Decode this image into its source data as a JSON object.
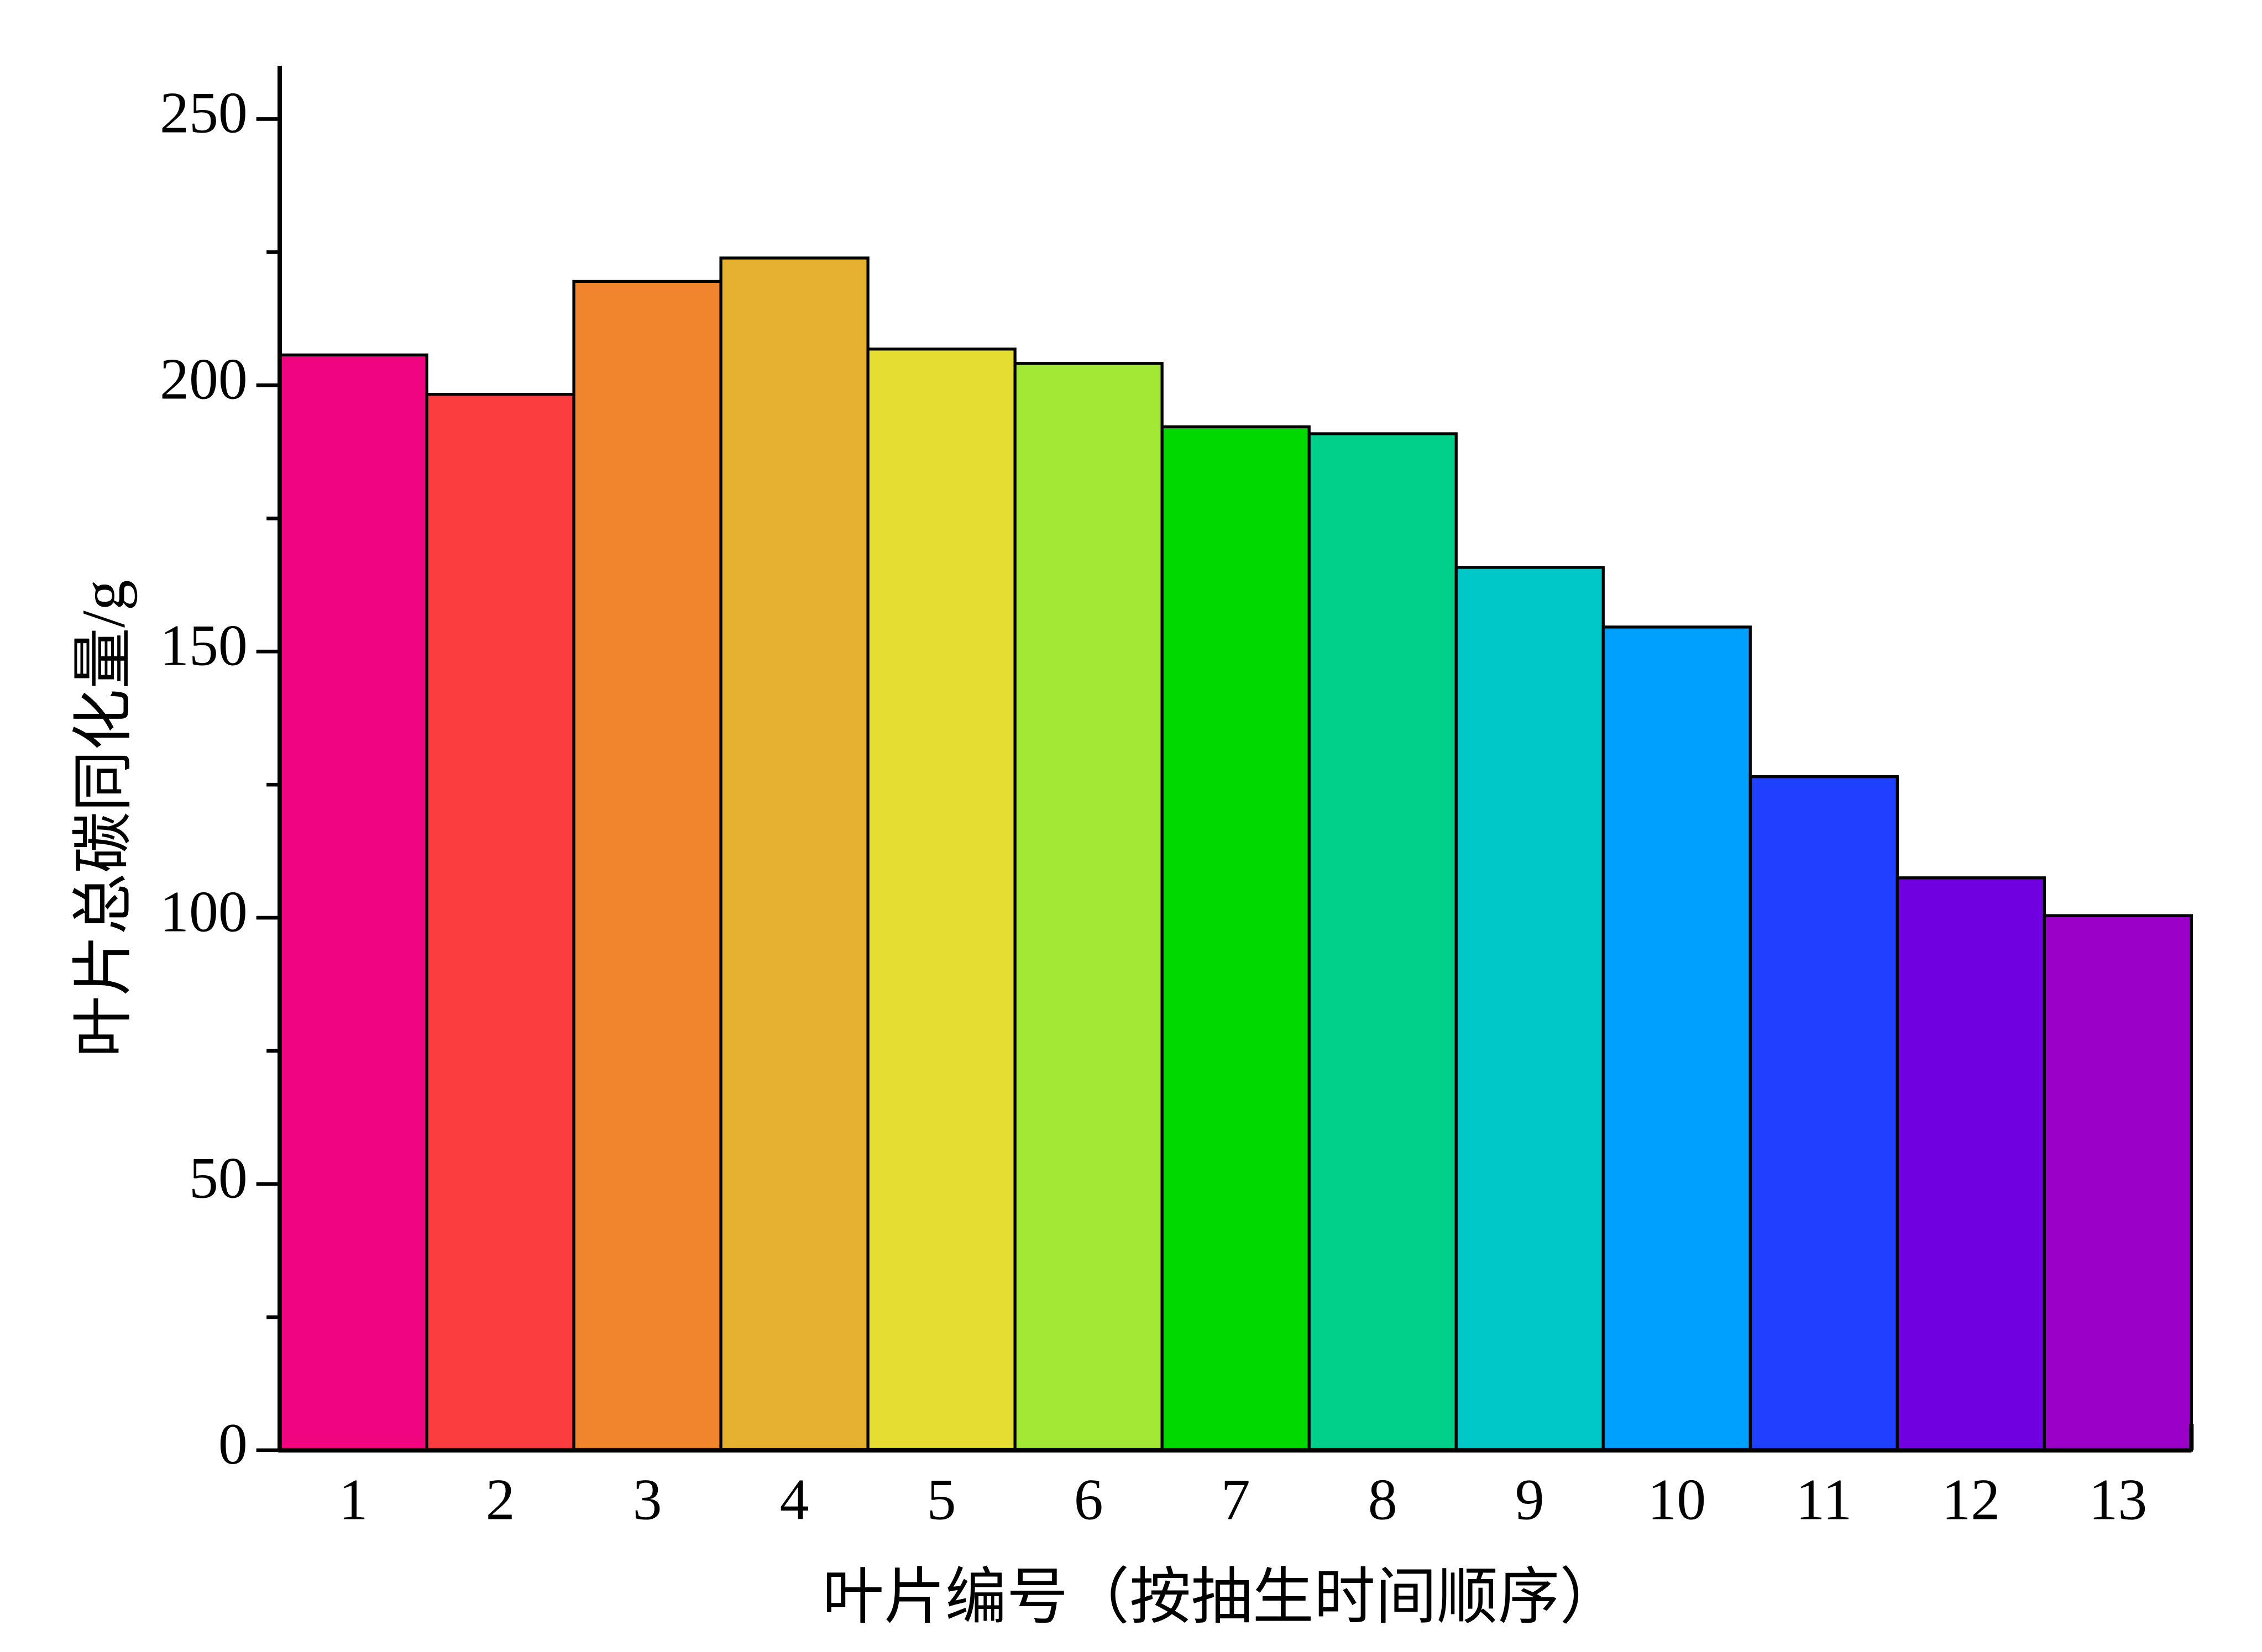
{
  "chart_data": {
    "type": "bar",
    "x_label": "叶片编号（按抽生时间顺序）",
    "y_label": "叶片总碳同化量/g",
    "categories": [
      "1",
      "2",
      "3",
      "4",
      "5",
      "6",
      "7",
      "8",
      "9",
      "10",
      "11",
      "12",
      "13"
    ],
    "values": [
      205.7,
      198.3,
      219.5,
      223.9,
      206.8,
      204.1,
      192.2,
      190.9,
      165.8,
      154.6,
      126.5,
      107.5,
      100.4
    ],
    "colors": [
      "#f0047f",
      "#fc3d3f",
      "#f0852d",
      "#e6b030",
      "#e6dd33",
      "#a3e835",
      "#00d900",
      "#00d08a",
      "#00c8c8",
      "#00a0ff",
      "#2040ff",
      "#7000e0",
      "#9a00c8"
    ],
    "ylim": [
      0,
      260
    ],
    "yticks": [
      0,
      50,
      100,
      150,
      200,
      250
    ],
    "minor_yticks": [
      25,
      75,
      125,
      175,
      225
    ]
  }
}
